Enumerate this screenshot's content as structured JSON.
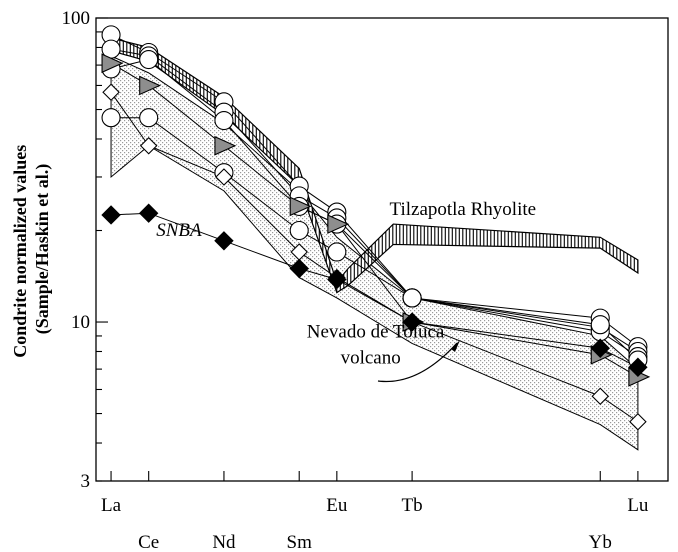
{
  "chart_data": {
    "type": "line",
    "title": "",
    "ylabel_lines": [
      "Condrite normalized values",
      "(Sample/Haskin et al.)"
    ],
    "xlabel": "",
    "y_scale": "log",
    "ylim": [
      3,
      100
    ],
    "y_ticks": [
      {
        "value": 3,
        "label": "3"
      },
      {
        "value": 10,
        "label": "10"
      },
      {
        "value": 100,
        "label": "100"
      }
    ],
    "x_axis": [
      {
        "name": "La",
        "pos": 57,
        "row": 1
      },
      {
        "name": "Ce",
        "pos": 58,
        "row": 2
      },
      {
        "name": "Nd",
        "pos": 60,
        "row": 2
      },
      {
        "name": "Sm",
        "pos": 62,
        "row": 2
      },
      {
        "name": "Eu",
        "pos": 63,
        "row": 1
      },
      {
        "name": "Tb",
        "pos": 65,
        "row": 1
      },
      {
        "name": "Yb",
        "pos": 70,
        "row": 2
      },
      {
        "name": "Lu",
        "pos": 71,
        "row": 1
      }
    ],
    "xlim": [
      56.6,
      71.8
    ],
    "fields": [
      {
        "name": "Nevado de Toluca volcano",
        "style": "stipple",
        "upper": [
          [
            57,
            75
          ],
          [
            58,
            66
          ],
          [
            60,
            45
          ],
          [
            62,
            27
          ],
          [
            63,
            19
          ],
          [
            65,
            12
          ],
          [
            70,
            9
          ],
          [
            71,
            7
          ]
        ],
        "lower": [
          [
            57,
            30
          ],
          [
            58,
            38
          ],
          [
            60,
            27
          ],
          [
            62,
            14
          ],
          [
            63,
            12
          ],
          [
            65,
            8.5
          ],
          [
            70,
            4.6
          ],
          [
            71,
            3.8
          ]
        ]
      },
      {
        "name": "Tilzapotla Rhyolite",
        "style": "hatch",
        "upper": [
          [
            57,
            86
          ],
          [
            58,
            80
          ],
          [
            60,
            55
          ],
          [
            62,
            32
          ],
          [
            63,
            13.5
          ],
          [
            63.3,
            15
          ],
          [
            64.5,
            21
          ],
          [
            70,
            19
          ],
          [
            71,
            16
          ]
        ],
        "lower": [
          [
            57,
            78
          ],
          [
            58,
            72
          ],
          [
            60,
            48
          ],
          [
            62,
            28
          ],
          [
            63,
            12.5
          ],
          [
            63.3,
            13.2
          ],
          [
            64.5,
            18
          ],
          [
            70,
            17.5
          ],
          [
            71,
            14.5
          ]
        ]
      }
    ],
    "annotations": [
      {
        "text": "Tilzapotla Rhyolite",
        "at": [
          64.4,
          22.5
        ]
      },
      {
        "text": "SNBA",
        "at": [
          58.2,
          19.2
        ],
        "italic": true
      },
      {
        "text": "Nevado de Toluca",
        "at": [
          62.2,
          8.9
        ]
      },
      {
        "text": "volcano",
        "at": [
          63.1,
          7.3
        ]
      }
    ],
    "series": [
      {
        "marker": "circle",
        "values": [
          [
            57,
            88
          ],
          [
            58,
            77
          ],
          [
            60,
            53
          ],
          [
            62,
            28
          ],
          [
            63,
            23
          ],
          [
            65,
            12
          ],
          [
            70,
            10.3
          ],
          [
            71,
            8.3
          ]
        ]
      },
      {
        "marker": "circle",
        "values": [
          [
            57,
            79
          ],
          [
            58,
            75
          ],
          [
            60,
            49
          ],
          [
            62,
            26
          ],
          [
            63,
            22
          ],
          [
            65,
            12
          ],
          [
            70,
            9.6
          ],
          [
            71,
            8.0
          ]
        ]
      },
      {
        "marker": "circle",
        "values": [
          [
            57,
            68
          ],
          [
            58,
            73
          ],
          [
            60,
            46
          ],
          [
            62,
            24
          ],
          [
            63,
            21
          ],
          [
            65,
            12
          ],
          [
            70,
            9.3
          ],
          [
            71,
            7.7
          ]
        ]
      },
      {
        "marker": "circle",
        "values": [
          [
            57,
            47
          ],
          [
            58,
            47
          ],
          [
            60,
            31
          ],
          [
            62,
            20
          ],
          [
            63,
            17
          ],
          [
            65,
            12
          ],
          [
            70,
            9.8
          ],
          [
            71,
            7.5
          ]
        ]
      },
      {
        "marker": "triangle-gray",
        "values": [
          [
            57,
            71
          ],
          [
            58,
            60
          ],
          [
            60,
            38
          ],
          [
            62,
            24
          ],
          [
            63,
            21
          ],
          [
            65,
            10
          ],
          [
            70,
            7.8
          ],
          [
            71,
            6.6
          ]
        ]
      },
      {
        "marker": "diamond-open",
        "values": [
          [
            57,
            57
          ],
          [
            58,
            38
          ],
          [
            60,
            30
          ],
          [
            62,
            17
          ],
          [
            63,
            14
          ],
          [
            65,
            10
          ],
          [
            70,
            5.7
          ],
          [
            71,
            4.7
          ]
        ]
      },
      {
        "marker": "diamond-black",
        "values": [
          [
            57,
            22.5
          ],
          [
            58,
            22.8
          ],
          [
            60,
            18.5
          ],
          [
            62,
            15
          ],
          [
            63,
            13.8
          ],
          [
            65,
            10
          ],
          [
            70,
            8.2
          ],
          [
            71,
            7.1
          ]
        ]
      }
    ]
  }
}
